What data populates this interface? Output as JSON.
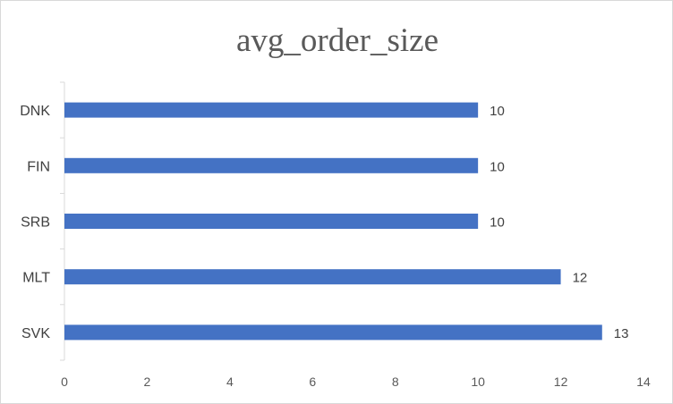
{
  "chart_data": {
    "type": "bar",
    "orientation": "horizontal",
    "title": "avg_order_size",
    "categories": [
      "DNK",
      "FIN",
      "SRB",
      "MLT",
      "SVK"
    ],
    "values": [
      10,
      10,
      10,
      12,
      13
    ],
    "data_labels": [
      "10",
      "10",
      "10",
      "12",
      "13"
    ],
    "xlim": [
      0,
      14
    ],
    "x_ticks": [
      0,
      2,
      4,
      6,
      8,
      10,
      12,
      14
    ],
    "bar_color": "#4472C4",
    "grid": false,
    "legend": "none"
  }
}
